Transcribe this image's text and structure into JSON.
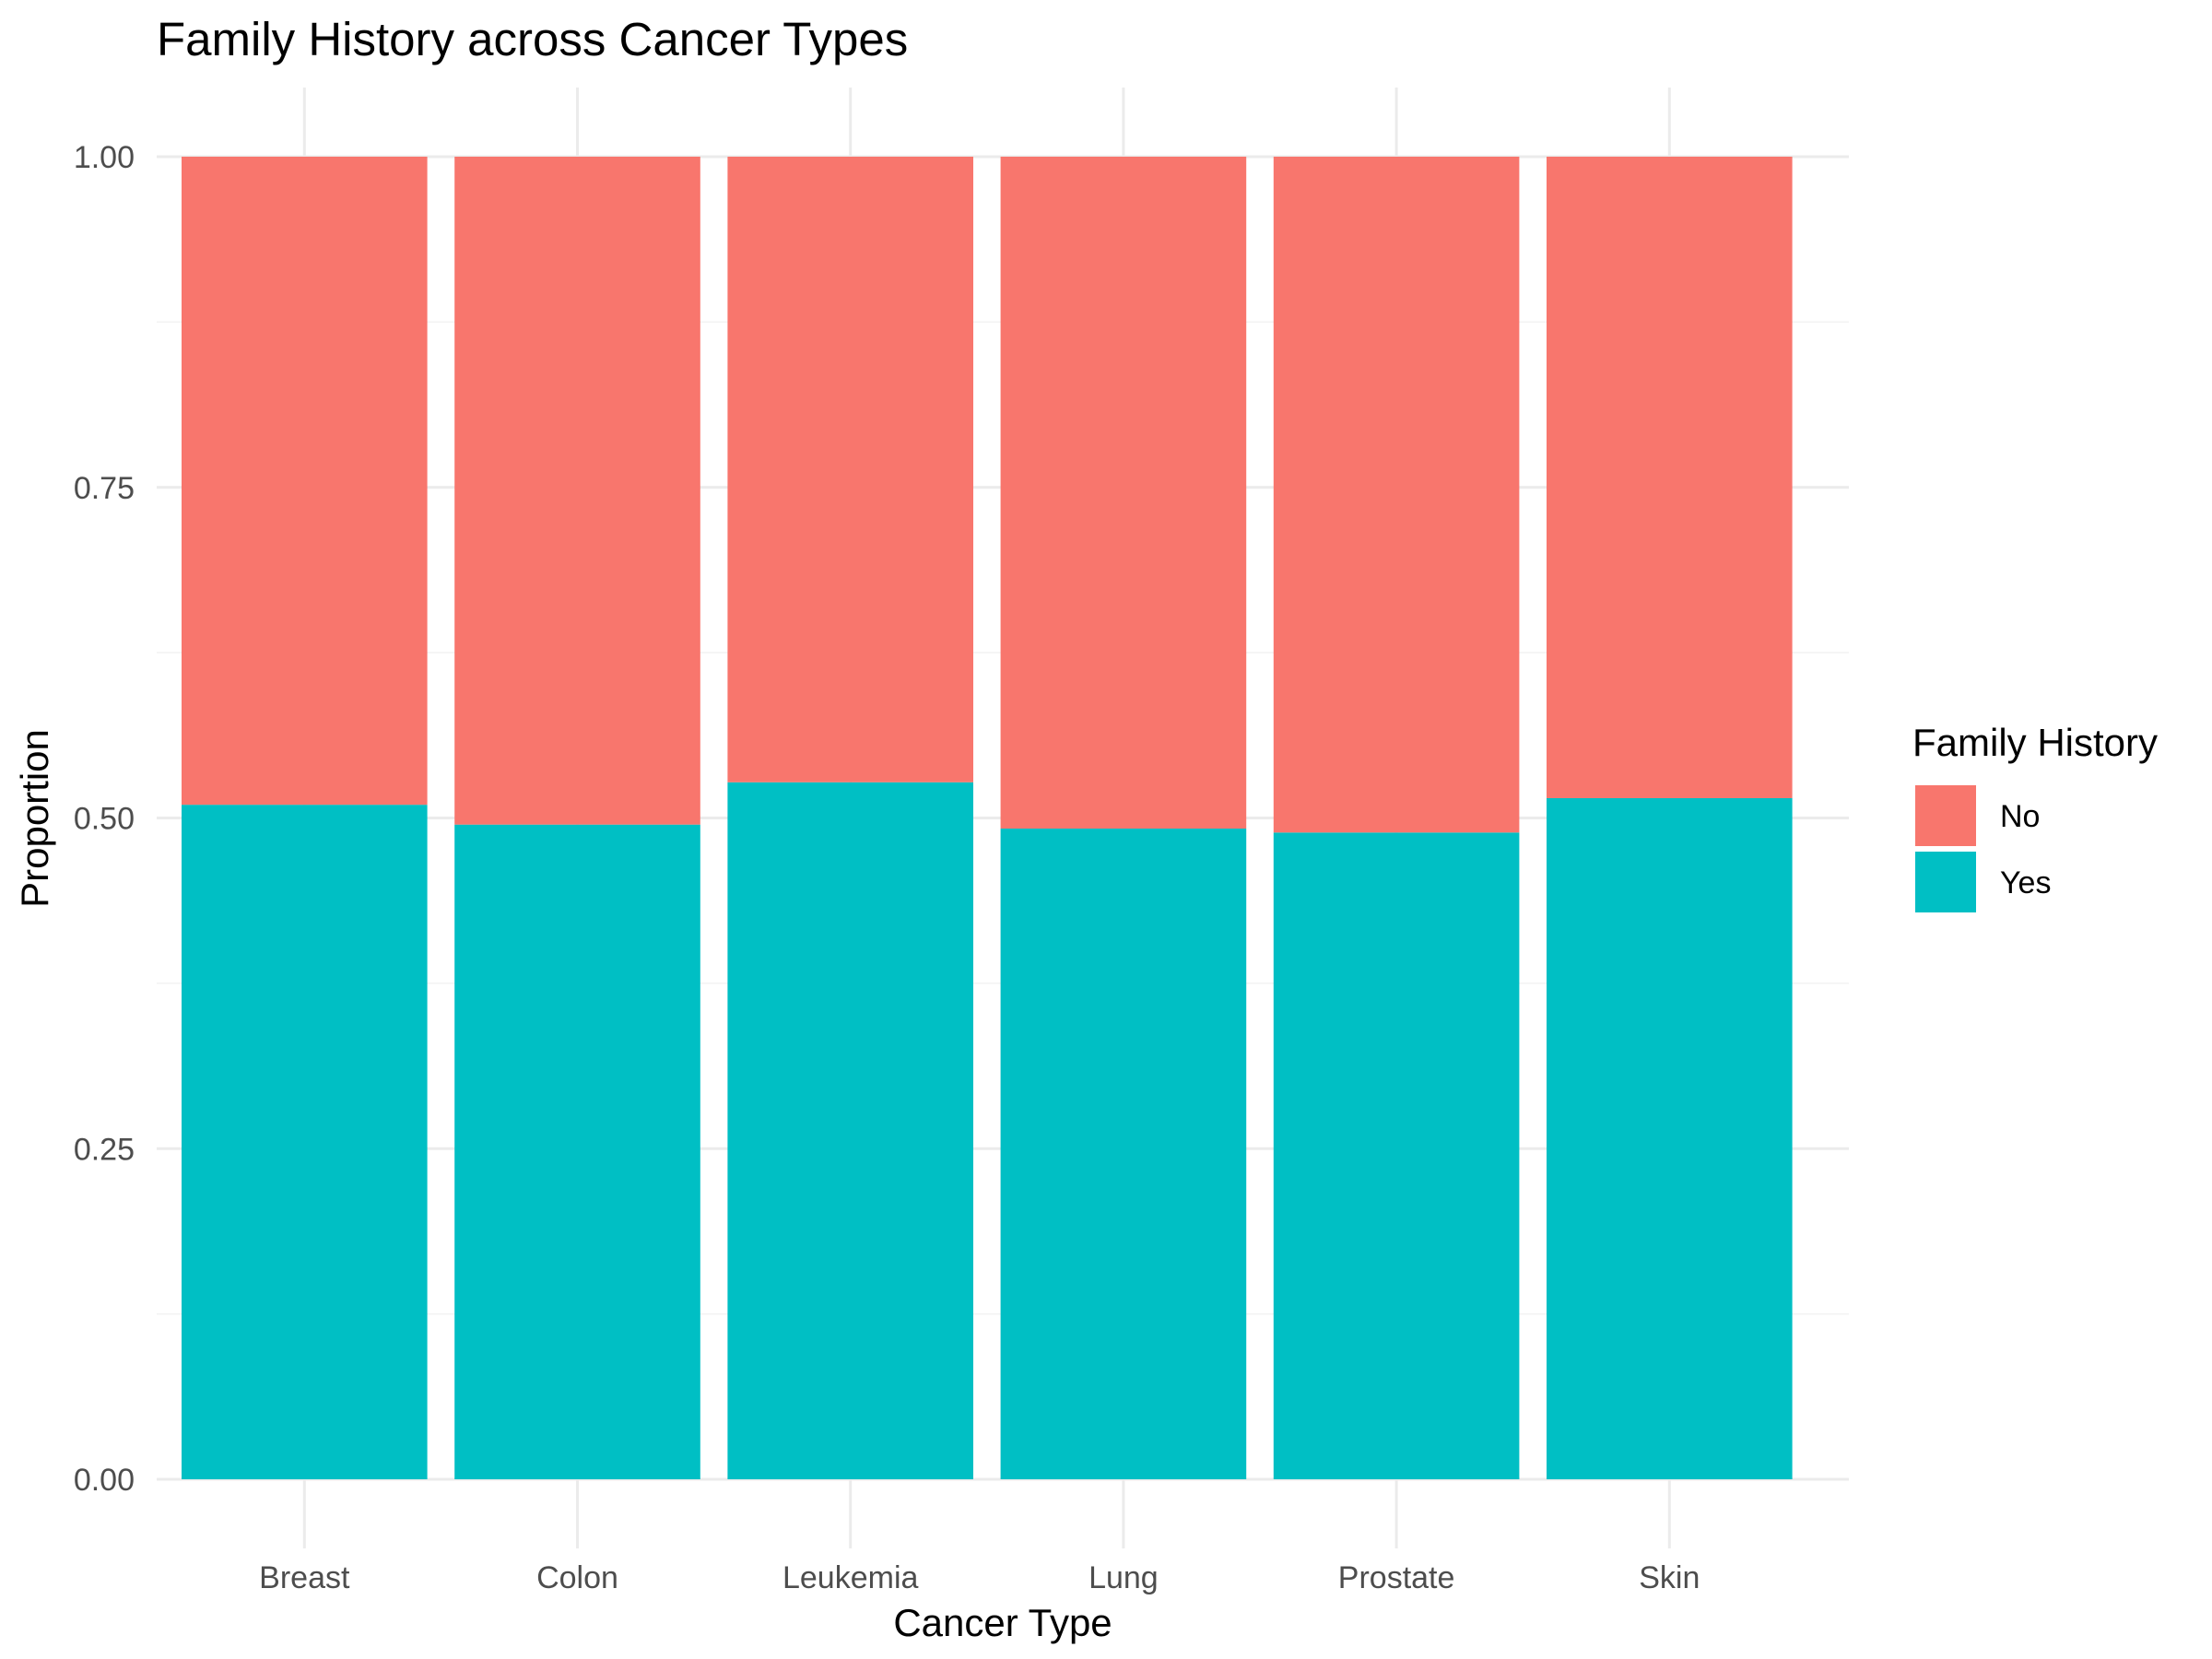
{
  "chart_data": {
    "type": "bar",
    "stacked": true,
    "position": "fill",
    "title": "Family History across Cancer Types",
    "xlabel": "Cancer Type",
    "ylabel": "Proportion",
    "ylim": [
      0,
      1
    ],
    "yticks": [
      "0.00",
      "0.25",
      "0.50",
      "0.75",
      "1.00"
    ],
    "categories": [
      "Breast",
      "Colon",
      "Leukemia",
      "Lung",
      "Prostate",
      "Skin"
    ],
    "series": [
      {
        "name": "No",
        "color": "#F8766D",
        "values": [
          0.49,
          0.505,
          0.473,
          0.508,
          0.511,
          0.485
        ]
      },
      {
        "name": "Yes",
        "color": "#00BFC4",
        "values": [
          0.51,
          0.495,
          0.527,
          0.492,
          0.489,
          0.515
        ]
      }
    ],
    "legend": {
      "title": "Family History",
      "placement": "right"
    },
    "grid": true
  }
}
